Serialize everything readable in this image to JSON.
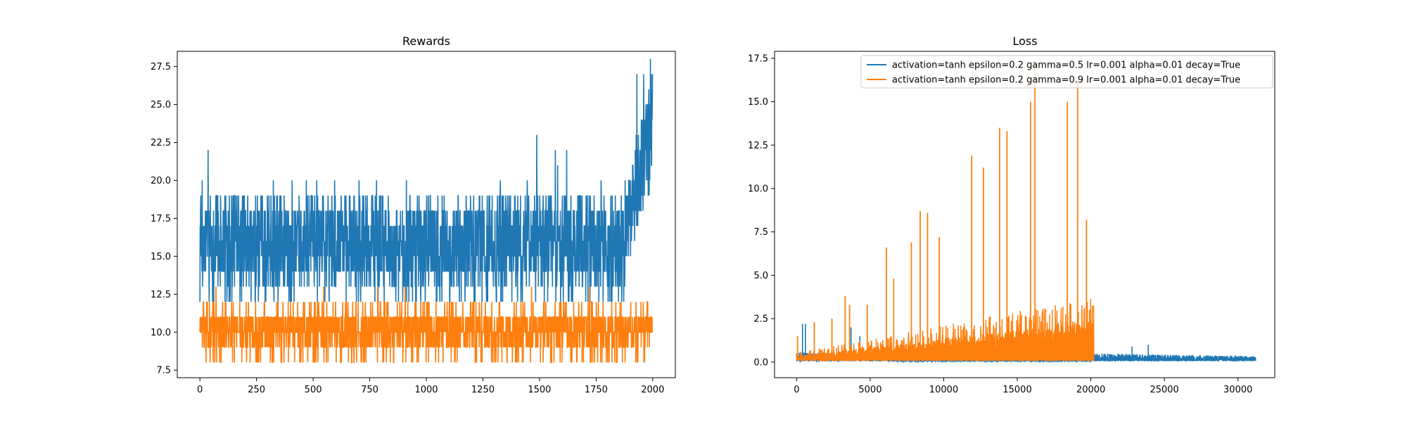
{
  "chart_data": [
    {
      "type": "line",
      "title": "Rewards",
      "xlabel": "",
      "ylabel": "",
      "xlim": [
        -100,
        2100
      ],
      "ylim": [
        7,
        28.5
      ],
      "xticks": [
        0,
        250,
        500,
        750,
        1000,
        1250,
        1500,
        1750,
        2000
      ],
      "yticks": [
        7.5,
        10.0,
        12.5,
        15.0,
        17.5,
        20.0,
        22.5,
        25.0,
        27.5
      ],
      "grid": false,
      "legend": "none",
      "series": [
        {
          "color": "#1f77b4",
          "n_points": 2000,
          "x_range": [
            0,
            2000
          ],
          "y_band": [
            12,
            19
          ],
          "y_min": 12,
          "y_max": 28,
          "spikes": [
            {
              "x": 36,
              "y": 22
            },
            {
              "x": 1488,
              "y": 23
            },
            {
              "x": 1580,
              "y": 21
            },
            {
              "x": 1570,
              "y": 22
            },
            {
              "x": 1620,
              "y": 22
            },
            {
              "x": 1930,
              "y": 27
            },
            {
              "x": 1960,
              "y": 27
            },
            {
              "x": 1990,
              "y": 28
            }
          ],
          "trend": "rising sharply after x=1880 up to about 26-28"
        },
        {
          "color": "#ff7f0e",
          "n_points": 2000,
          "x_range": [
            0,
            2000
          ],
          "y_band": [
            9,
            11
          ],
          "y_min": 8,
          "y_max": 13
        }
      ]
    },
    {
      "type": "line",
      "title": "Loss",
      "xlabel": "",
      "ylabel": "",
      "xlim": [
        -1500,
        32500
      ],
      "ylim": [
        -0.9,
        17.9
      ],
      "xticks": [
        0,
        5000,
        10000,
        15000,
        20000,
        25000,
        30000
      ],
      "yticks": [
        0.0,
        2.5,
        5.0,
        7.5,
        10.0,
        12.5,
        15.0,
        17.5
      ],
      "grid": false,
      "legend": "top-right",
      "series": [
        {
          "name": "activation=tanh epsilon=0.2 gamma=0.5 lr=0.001 alpha=0.01 decay=True",
          "color": "#1f77b4",
          "n_points": 31200,
          "x_range": [
            0,
            31200
          ],
          "baseline": [
            0.05,
            0.45
          ],
          "spikes": [
            {
              "x": 400,
              "y": 2.2
            },
            {
              "x": 600,
              "y": 2.2
            },
            {
              "x": 3700,
              "y": 2.0
            },
            {
              "x": 4300,
              "y": 1.5
            },
            {
              "x": 22800,
              "y": 0.9
            },
            {
              "x": 23900,
              "y": 1.0
            }
          ]
        },
        {
          "name": "activation=tanh epsilon=0.2 gamma=0.9 lr=0.001 alpha=0.01 decay=True",
          "color": "#ff7f0e",
          "n_points": 20200,
          "x_range": [
            0,
            20200
          ],
          "envelope": "noise floor rising from about 0.4 at x=0 to about 2.4 at x=20000",
          "spikes": [
            {
              "x": 1200,
              "y": 2.3
            },
            {
              "x": 2400,
              "y": 2.5
            },
            {
              "x": 3300,
              "y": 3.8
            },
            {
              "x": 3600,
              "y": 3.3
            },
            {
              "x": 4800,
              "y": 3.3
            },
            {
              "x": 6100,
              "y": 6.6
            },
            {
              "x": 6600,
              "y": 4.8
            },
            {
              "x": 7800,
              "y": 6.9
            },
            {
              "x": 8400,
              "y": 8.7
            },
            {
              "x": 8900,
              "y": 8.6
            },
            {
              "x": 9700,
              "y": 7.2
            },
            {
              "x": 11900,
              "y": 11.9
            },
            {
              "x": 12700,
              "y": 11.2
            },
            {
              "x": 13800,
              "y": 13.5
            },
            {
              "x": 14300,
              "y": 13.3
            },
            {
              "x": 15900,
              "y": 15.0
            },
            {
              "x": 16200,
              "y": 17.3
            },
            {
              "x": 18400,
              "y": 15.0
            },
            {
              "x": 19100,
              "y": 16.2
            },
            {
              "x": 19700,
              "y": 8.2
            }
          ]
        }
      ]
    }
  ]
}
